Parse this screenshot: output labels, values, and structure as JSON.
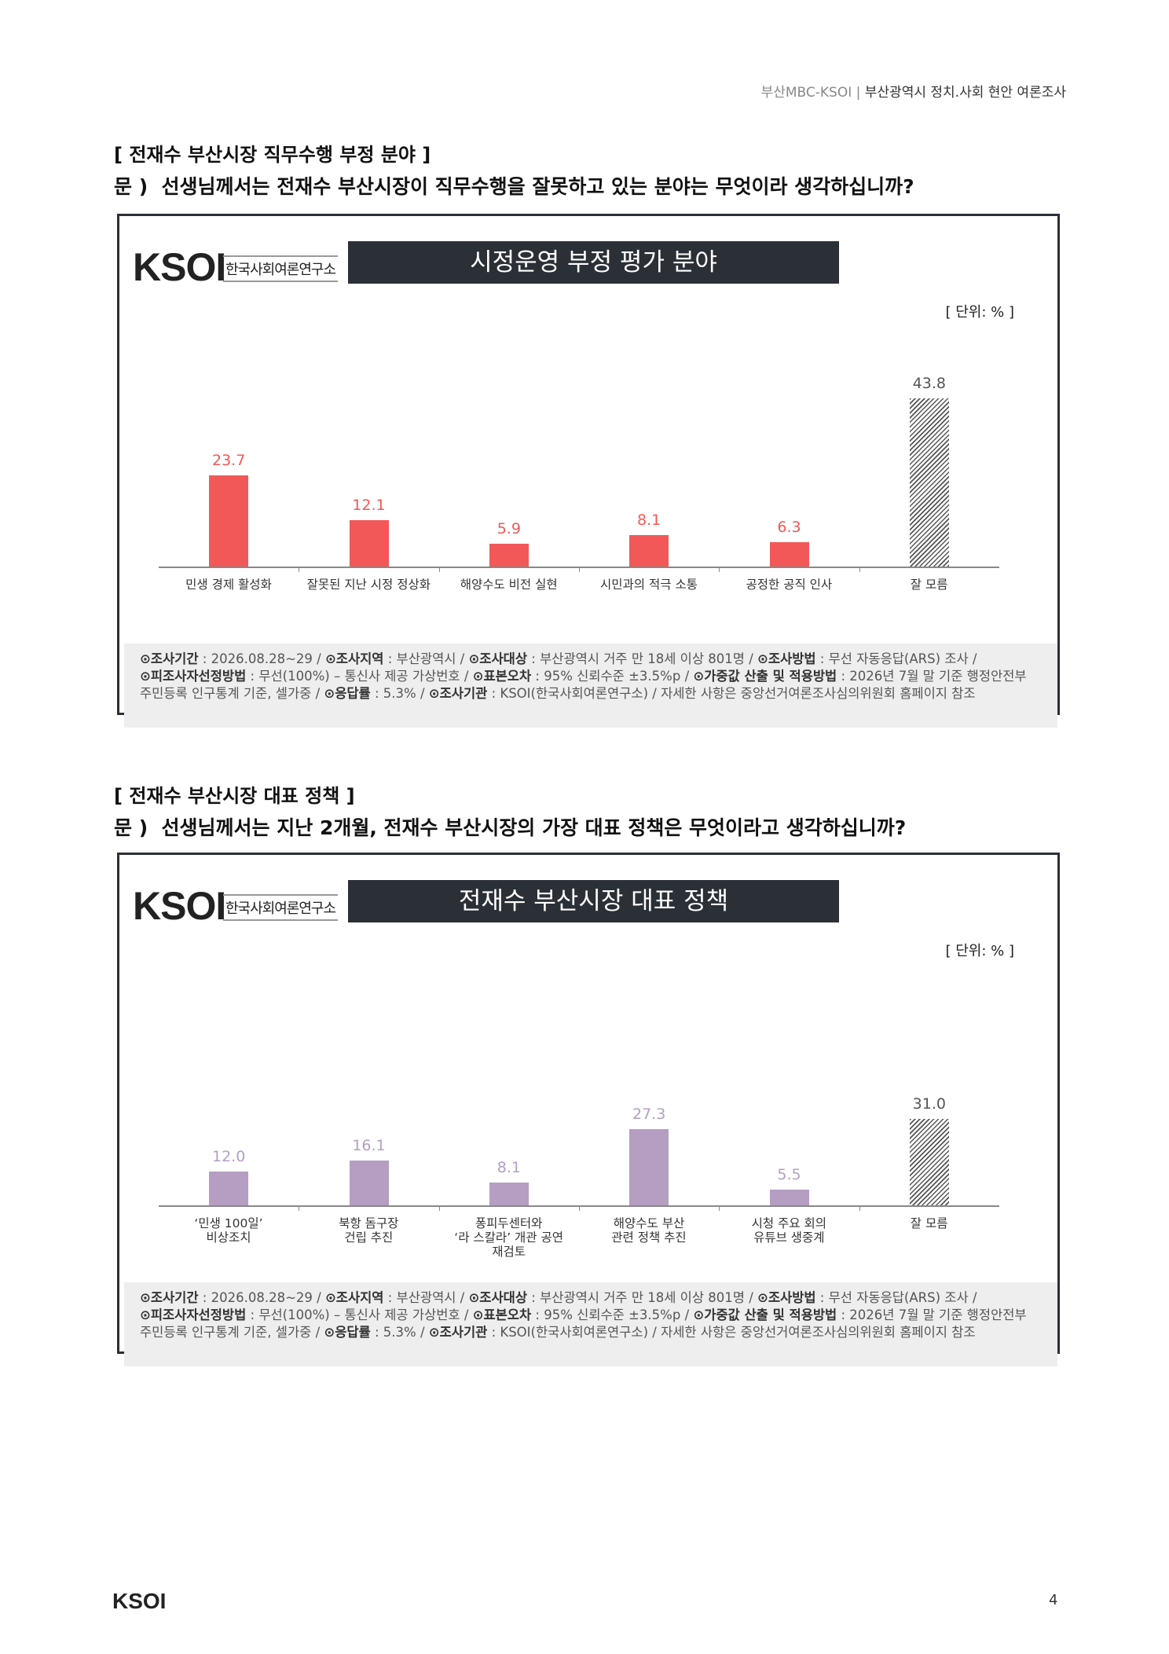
{
  "header": {
    "left": "부산MBC-KSOI",
    "sep": "|",
    "right": "부산광역시 정치.사회 현안 여론조사"
  },
  "sections": [
    {
      "heading": "[ 전재수 부산시장 직무수행 부정 분야 ]",
      "question": "문 )  선생님께서는 전재수 부산시장이 직무수행을 잘못하고 있는 분야는 무엇이라 생각하십니까?"
    },
    {
      "heading": "[ 전재수 부산시장 대표 정책 ]",
      "question": "문 )  선생님께서는 지난 2개월, 전재수 부산시장의 가장 대표 정책은 무엇이라고 생각하십니까?"
    }
  ],
  "chart_data": [
    {
      "type": "bar",
      "title": "시정운영 부정 평가 분야",
      "unit": "[ 단위: % ]",
      "logo": {
        "mark": "KSOI",
        "name": "한국사회여론연구소"
      },
      "categories": [
        "민생 경제 활성화",
        "잘못된 지난 시정 정상화",
        "해양수도 비전 실현",
        "시민과의 적극 소통",
        "공정한 공직 인사",
        "잘 모름"
      ],
      "values": [
        23.7,
        12.1,
        5.9,
        8.1,
        6.3,
        43.8
      ],
      "colors": [
        "#f25858",
        "#f25858",
        "#f25858",
        "#f25858",
        "#f25858",
        "#555555"
      ],
      "patterns": [
        "solid",
        "solid",
        "solid",
        "solid",
        "solid",
        "hatch"
      ],
      "notes": [
        [
          {
            "label": "⊙조사기간",
            "text": " : 2026.08.28~29 / "
          },
          {
            "label": "⊙조사지역",
            "text": " : 부산광역시 / "
          },
          {
            "label": "⊙조사대상",
            "text": " : 부산광역시 거주 만 18세 이상 801명 / "
          },
          {
            "label": "⊙조사방법",
            "text": " : 무선 자동응답(ARS) 조사 /"
          }
        ],
        [
          {
            "label": "⊙피조사자선정방법",
            "text": " : 무선(100%) – 통신사 제공 가상번호 / "
          },
          {
            "label": "⊙표본오차",
            "text": " : 95% 신뢰수준 ±3.5%p / "
          },
          {
            "label": "⊙가중값 산출 및 적용방법",
            "text": " : 2026년 7월 말 기준 행정안전부"
          }
        ],
        [
          {
            "text": "주민등록 인구통계 기준, 셀가중 / "
          },
          {
            "label": "⊙응답률",
            "text": " : 5.3% / "
          },
          {
            "label": "⊙조사기관",
            "text": " : KSOI(한국사회여론연구소) / 자세한 사항은 중앙선거여론조사심의위원회 홈페이지 참조"
          }
        ]
      ]
    },
    {
      "type": "bar",
      "title": "전재수 부산시장 대표 정책",
      "unit": "[ 단위: % ]",
      "logo": {
        "mark": "KSOI",
        "name": "한국사회여론연구소"
      },
      "categories": [
        "‘민생 100일’\n비상조치",
        "북항 돔구장\n건립 추진",
        "퐁피두센터와\n‘라 스칼라’ 개관 공연\n재검토",
        "해양수도 부산\n관련 정책 추진",
        "시청 주요 회의\n유튜브 생중계",
        "잘 모름"
      ],
      "values": [
        12.0,
        16.1,
        8.1,
        27.3,
        5.5,
        31.0
      ],
      "value_labels": [
        "12.0",
        "16.1",
        "8.1",
        "27.3",
        "5.5",
        "31.0"
      ],
      "colors": [
        "#b59ec2",
        "#b59ec2",
        "#b59ec2",
        "#b59ec2",
        "#b59ec2",
        "#555555"
      ],
      "patterns": [
        "solid",
        "solid",
        "solid",
        "solid",
        "solid",
        "hatch"
      ],
      "notes": [
        [
          {
            "label": "⊙조사기간",
            "text": " : 2026.08.28~29 / "
          },
          {
            "label": "⊙조사지역",
            "text": " : 부산광역시 / "
          },
          {
            "label": "⊙조사대상",
            "text": " : 부산광역시 거주 만 18세 이상 801명 / "
          },
          {
            "label": "⊙조사방법",
            "text": " : 무선 자동응답(ARS) 조사 /"
          }
        ],
        [
          {
            "label": "⊙피조사자선정방법",
            "text": " : 무선(100%) – 통신사 제공 가상번호 / "
          },
          {
            "label": "⊙표본오차",
            "text": " : 95% 신뢰수준 ±3.5%p / "
          },
          {
            "label": "⊙가중값 산출 및 적용방법",
            "text": " : 2026년 7월 말 기준 행정안전부"
          }
        ],
        [
          {
            "text": "주민등록 인구통계 기준, 셀가중 / "
          },
          {
            "label": "⊙응답률",
            "text": " : 5.3% / "
          },
          {
            "label": "⊙조사기관",
            "text": " : KSOI(한국사회여론연구소) / 자세한 사항은 중앙선거여론조사심의위원회 홈페이지 참조"
          }
        ]
      ]
    }
  ],
  "footer": {
    "logo": "KSOI",
    "page": "4"
  }
}
